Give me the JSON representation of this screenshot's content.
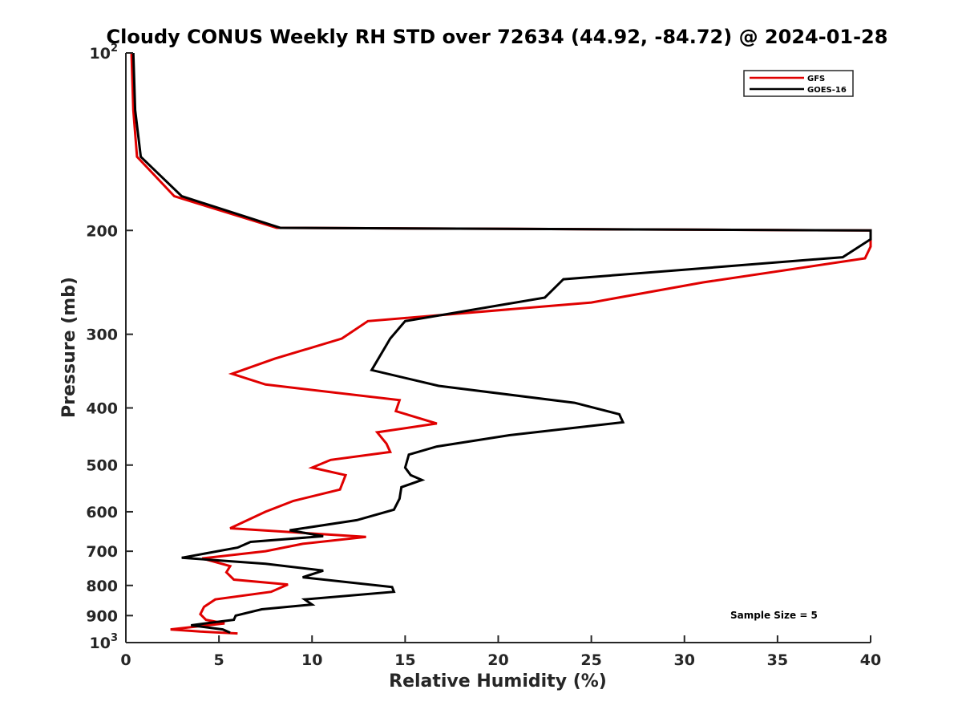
{
  "chart_data": {
    "type": "line",
    "title": "Cloudy CONUS Weekly RH STD over 72634 (44.92, -84.72) @ 2024-01-28",
    "xlabel": "Relative Humidity (%)",
    "ylabel": "Pressure (mb)",
    "xlim": [
      0,
      40
    ],
    "ylim": [
      100,
      1000
    ],
    "y_scale": "log",
    "y_reversed": true,
    "grid": false,
    "x_ticks": [
      "0",
      "5",
      "10",
      "15",
      "20",
      "25",
      "30",
      "35",
      "40"
    ],
    "y_ticks": [
      {
        "value": 100,
        "base": "10",
        "exp": "2"
      },
      {
        "value": 200,
        "label": "200"
      },
      {
        "value": 300,
        "label": "300"
      },
      {
        "value": 400,
        "label": "400"
      },
      {
        "value": 500,
        "label": "500"
      },
      {
        "value": 600,
        "label": "600"
      },
      {
        "value": 700,
        "label": "700"
      },
      {
        "value": 800,
        "label": "800"
      },
      {
        "value": 900,
        "label": "900"
      },
      {
        "value": 1000,
        "base": "10",
        "exp": "3"
      }
    ],
    "legend": {
      "position": "top-right"
    },
    "annotation": "Sample Size = 5",
    "series": [
      {
        "name": "GFS",
        "color": "#e00000",
        "points": [
          [
            0.3,
            100
          ],
          [
            0.4,
            125
          ],
          [
            0.6,
            150
          ],
          [
            2.6,
            175
          ],
          [
            8.1,
            198
          ],
          [
            40,
            200
          ],
          [
            40,
            213
          ],
          [
            39.7,
            223
          ],
          [
            31,
            245
          ],
          [
            25,
            265
          ],
          [
            13,
            285
          ],
          [
            11.6,
            305
          ],
          [
            8,
            330
          ],
          [
            5.7,
            350
          ],
          [
            7.5,
            365
          ],
          [
            14.7,
            388
          ],
          [
            14.5,
            405
          ],
          [
            16.7,
            425
          ],
          [
            13.5,
            440
          ],
          [
            14,
            460
          ],
          [
            14.2,
            475
          ],
          [
            11,
            490
          ],
          [
            10,
            505
          ],
          [
            11.8,
            520
          ],
          [
            11.5,
            550
          ],
          [
            9,
            575
          ],
          [
            7.5,
            600
          ],
          [
            5.6,
            640
          ],
          [
            12.9,
            662
          ],
          [
            9.5,
            680
          ],
          [
            7.5,
            700
          ],
          [
            4.1,
            720
          ],
          [
            5.6,
            742
          ],
          [
            5.4,
            760
          ],
          [
            5.8,
            782
          ],
          [
            8.7,
            797
          ],
          [
            7.8,
            820
          ],
          [
            4.8,
            845
          ],
          [
            4.2,
            870
          ],
          [
            4.0,
            895
          ],
          [
            4.3,
            915
          ],
          [
            5.3,
            928
          ],
          [
            2.4,
            950
          ],
          [
            4.0,
            958
          ],
          [
            6.0,
            965
          ]
        ]
      },
      {
        "name": "GOES-16",
        "color": "#000000",
        "points": [
          [
            0.4,
            100
          ],
          [
            0.5,
            125
          ],
          [
            0.8,
            150
          ],
          [
            3,
            175
          ],
          [
            8.3,
            198
          ],
          [
            40,
            200
          ],
          [
            40,
            207
          ],
          [
            38.5,
            222
          ],
          [
            23.5,
            242
          ],
          [
            22.5,
            260
          ],
          [
            15,
            285
          ],
          [
            14.2,
            305
          ],
          [
            13.2,
            345
          ],
          [
            16.8,
            367
          ],
          [
            24.1,
            392
          ],
          [
            26.5,
            410
          ],
          [
            26.7,
            423
          ],
          [
            20.6,
            445
          ],
          [
            16.7,
            465
          ],
          [
            15.2,
            480
          ],
          [
            15.0,
            505
          ],
          [
            15.3,
            520
          ],
          [
            15.9,
            530
          ],
          [
            14.8,
            545
          ],
          [
            14.7,
            570
          ],
          [
            14.4,
            595
          ],
          [
            12.4,
            620
          ],
          [
            8.8,
            645
          ],
          [
            10.6,
            660
          ],
          [
            6.7,
            675
          ],
          [
            6.0,
            690
          ],
          [
            3.0,
            718
          ],
          [
            7.5,
            735
          ],
          [
            10.6,
            755
          ],
          [
            9.5,
            775
          ],
          [
            14.3,
            805
          ],
          [
            14.4,
            820
          ],
          [
            9.6,
            845
          ],
          [
            10.0,
            862
          ],
          [
            7.3,
            878
          ],
          [
            5.9,
            900
          ],
          [
            5.8,
            915
          ],
          [
            4.6,
            925
          ],
          [
            3.5,
            935
          ],
          [
            5.2,
            950
          ],
          [
            5.6,
            962
          ]
        ]
      }
    ]
  }
}
